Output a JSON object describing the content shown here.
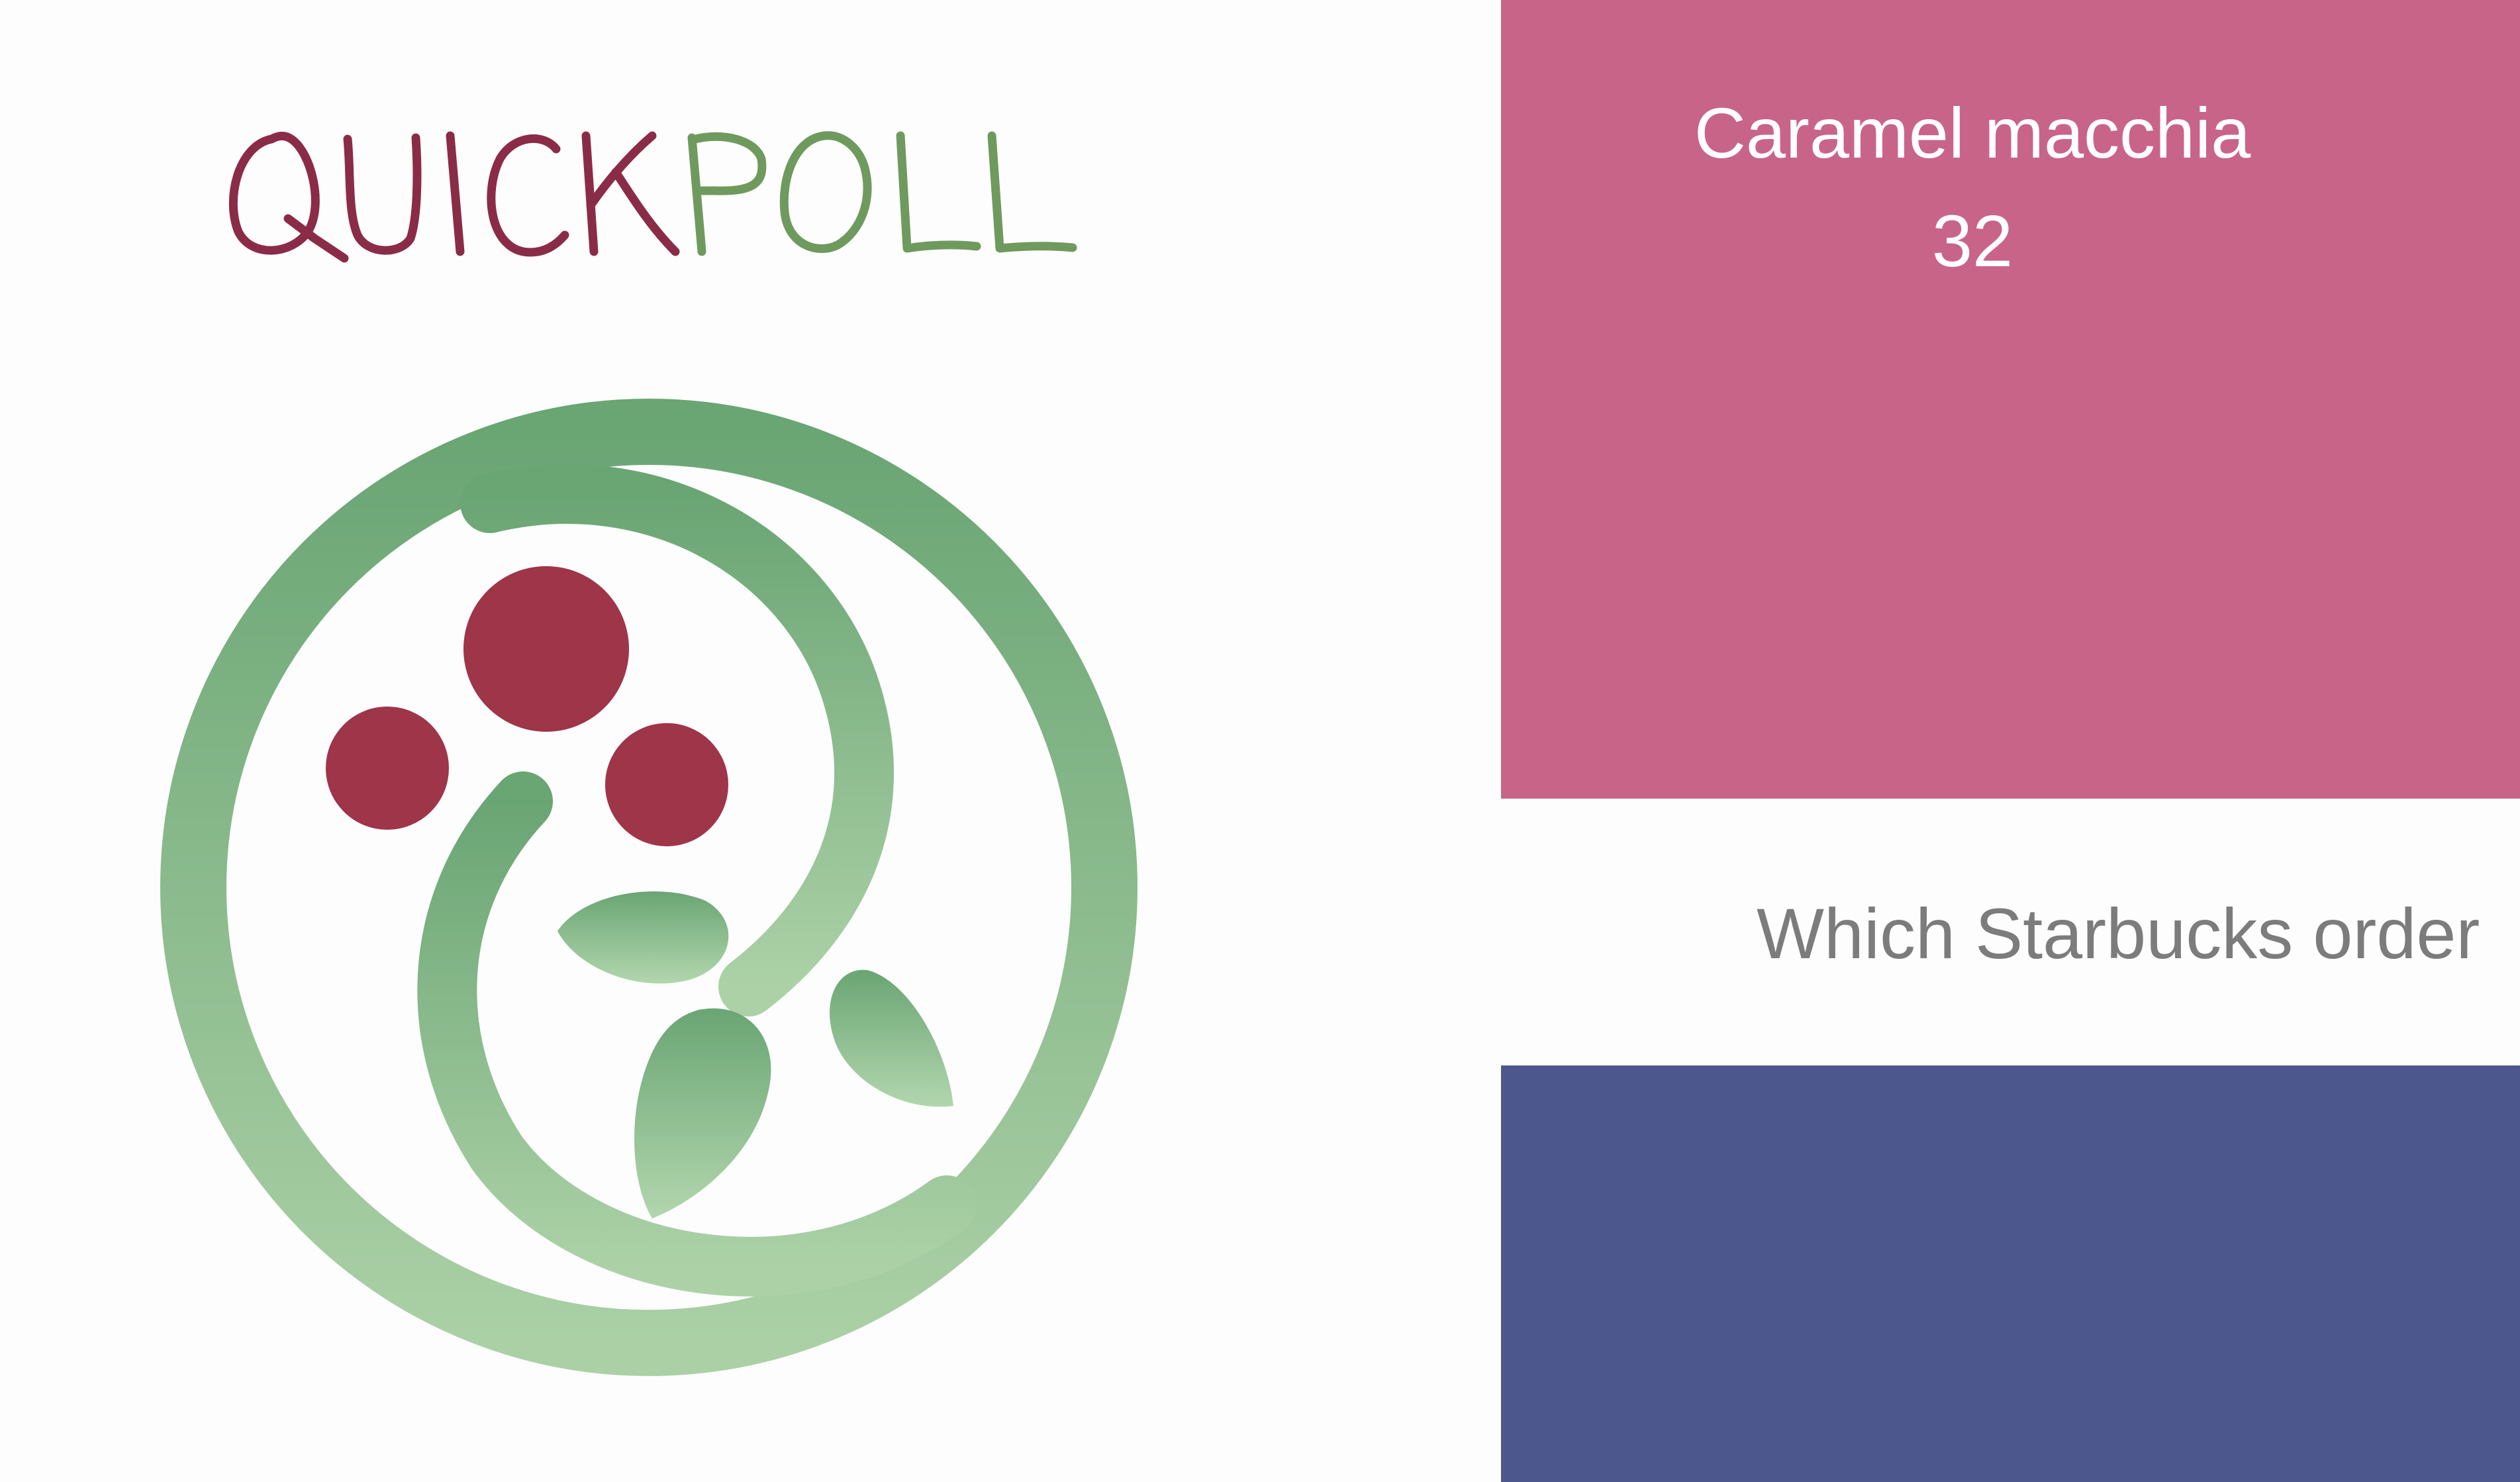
{
  "app": {
    "wordmark": "QUICKPOLL",
    "wordmark_parts": [
      "QUICK",
      "POLL"
    ],
    "logo_icon": "berries-and-leaves-wreath-icon"
  },
  "poll": {
    "question": "Which Starbucks order",
    "options": [
      {
        "label": "Caramel macchia",
        "votes": "32"
      }
    ]
  },
  "colors": {
    "wordmark_quick": "#8a2c48",
    "wordmark_poll": "#6f9a5e",
    "option_top": "#c96489",
    "option_bottom": "#4c578d",
    "question_text": "#7c7c7c",
    "berry": "#9e3549",
    "leaf_dark": "#6aa574",
    "leaf_light": "#abd0a6"
  }
}
